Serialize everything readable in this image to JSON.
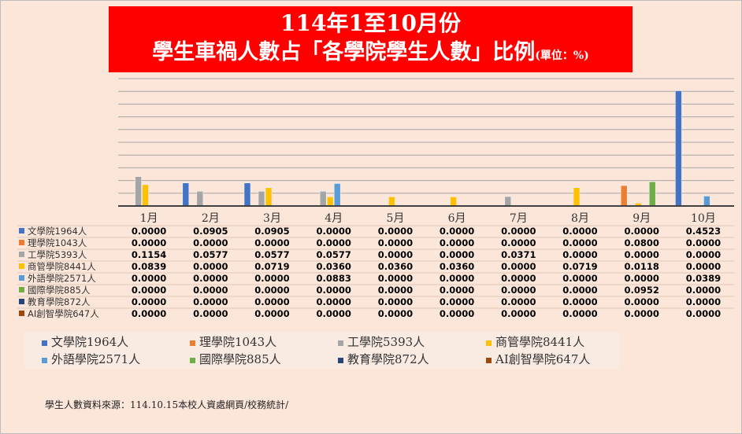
{
  "chart_data": {
    "type": "bar",
    "title": "114年1至10月份",
    "subtitle": "學生車禍人數占「各學院學生人數」比例",
    "unit_note": "(單位：%)",
    "categories": [
      "1月",
      "2月",
      "3月",
      "4月",
      "5月",
      "6月",
      "7月",
      "8月",
      "9月",
      "10月"
    ],
    "ylim": [
      0,
      0.5
    ],
    "grid": true,
    "legend_position": "bottom",
    "series": [
      {
        "name": "文學院1964人",
        "color": "#4472c4",
        "values": [
          0,
          0.0905,
          0.0905,
          0,
          0,
          0,
          0,
          0,
          0,
          0.4523
        ]
      },
      {
        "name": "理學院1043人",
        "color": "#ed7d31",
        "values": [
          0,
          0,
          0,
          0,
          0,
          0,
          0,
          0,
          0.08,
          0
        ]
      },
      {
        "name": "工學院5393人",
        "color": "#a5a5a5",
        "values": [
          0.1154,
          0.0577,
          0.0577,
          0.0577,
          0,
          0,
          0.0371,
          0,
          0,
          0
        ]
      },
      {
        "name": "商管學院8441人",
        "color": "#ffc000",
        "values": [
          0.0839,
          0,
          0.0719,
          0.036,
          0.036,
          0.036,
          0,
          0.0719,
          0.0118,
          0
        ]
      },
      {
        "name": "外語學院2571人",
        "color": "#5b9bd5",
        "values": [
          0,
          0,
          0,
          0.0883,
          0,
          0,
          0,
          0,
          0,
          0.0389
        ]
      },
      {
        "name": "國際學院885人",
        "color": "#70ad47",
        "values": [
          0,
          0,
          0,
          0,
          0,
          0,
          0,
          0,
          0.0952,
          0
        ]
      },
      {
        "name": "教育學院872人",
        "color": "#264478",
        "values": [
          0,
          0,
          0,
          0,
          0,
          0,
          0,
          0,
          0,
          0
        ]
      },
      {
        "name": "AI創智學院647人",
        "color": "#9e480e",
        "values": [
          0,
          0,
          0,
          0,
          0,
          0,
          0,
          0,
          0,
          0
        ]
      }
    ]
  },
  "source": "學生人數資料來源：114.10.15本校人資處網頁/校務統計/"
}
